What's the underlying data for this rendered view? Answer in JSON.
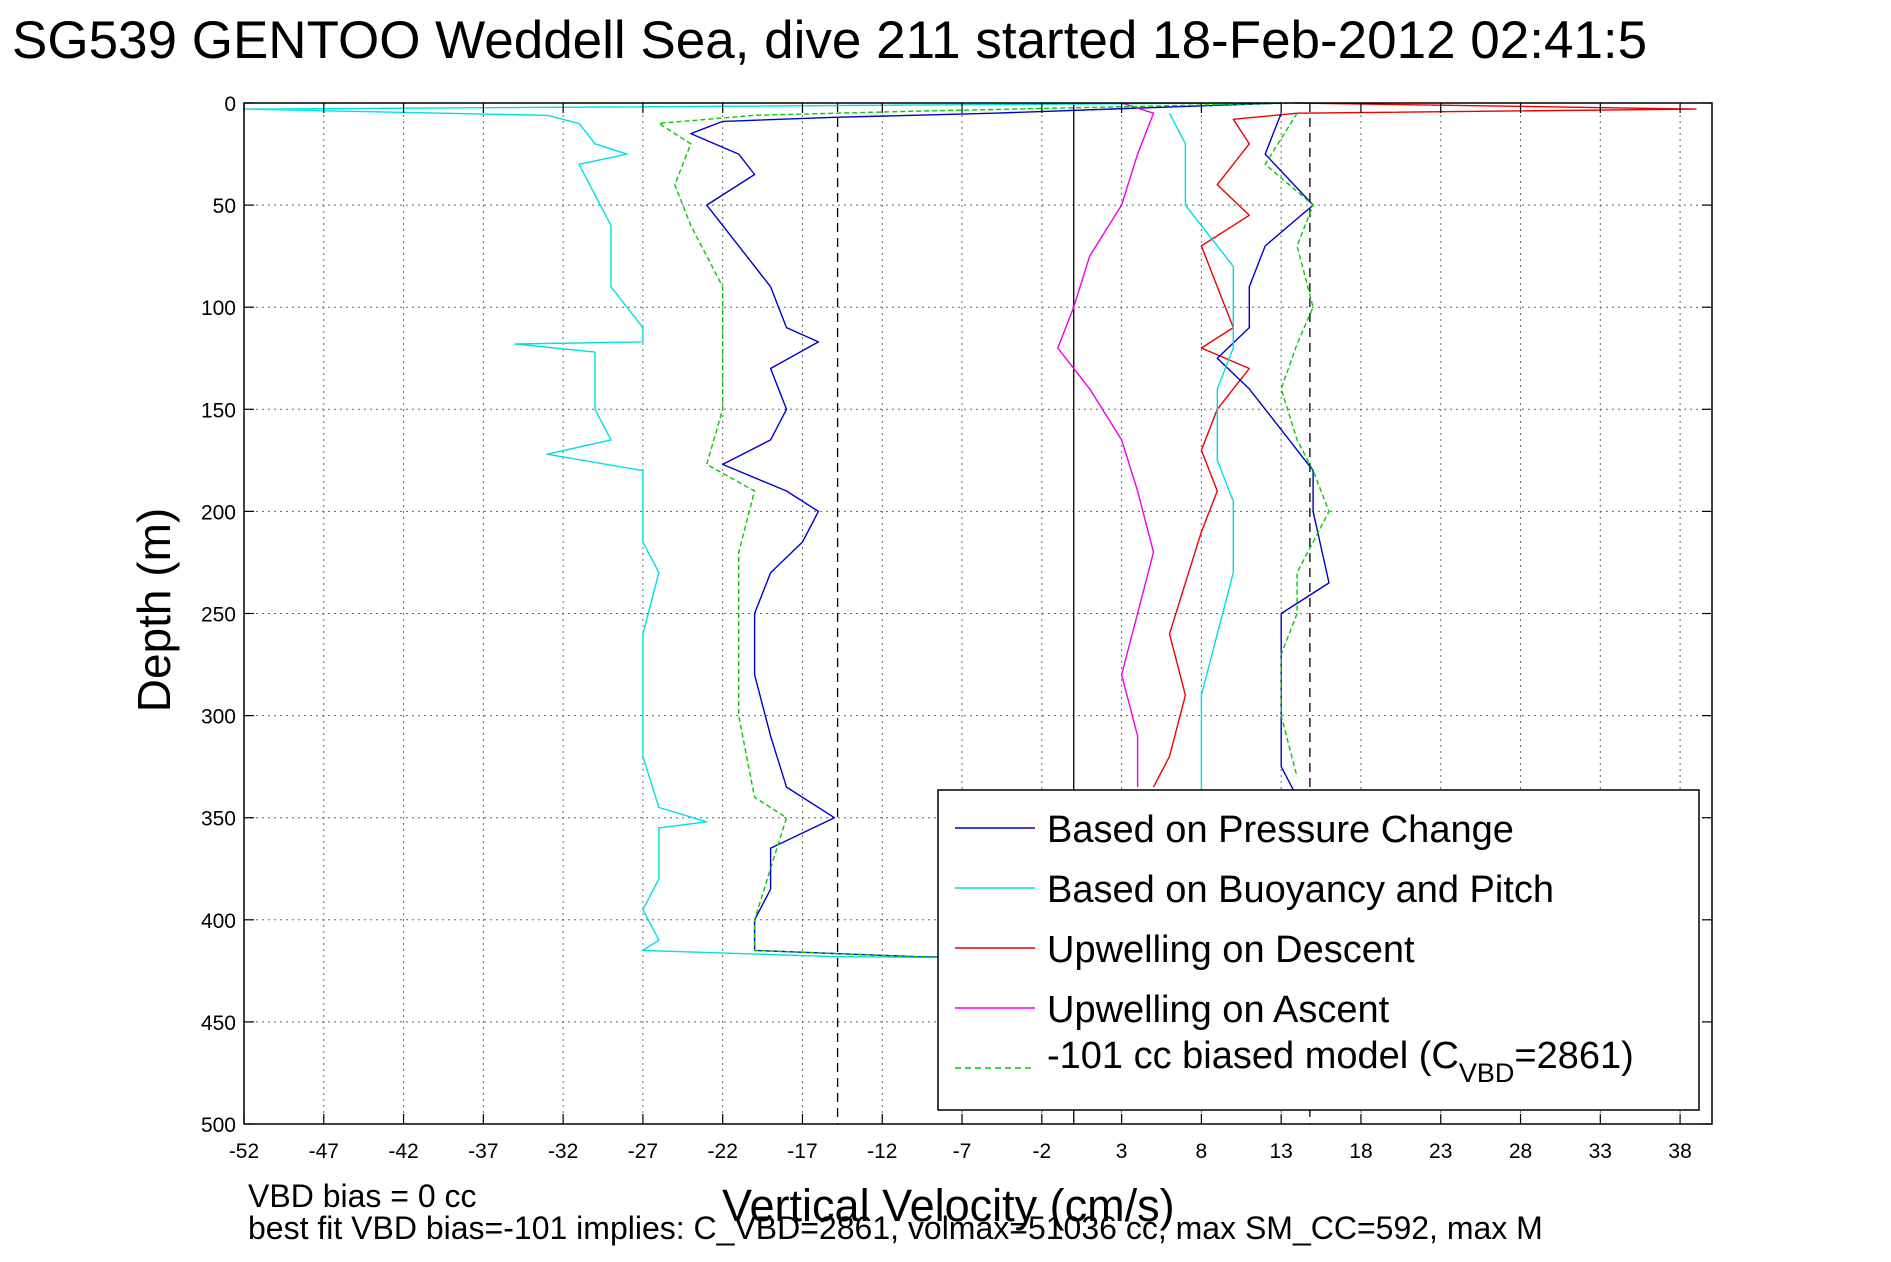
{
  "chart_data": {
    "type": "line",
    "title": "SG539 GENTOO Weddell Sea, dive 211 started 18-Feb-2012 02:41:5",
    "xlabel": "Vertical Velocity (cm/s)",
    "ylabel": "Depth (m)",
    "xlim": [
      -52,
      40
    ],
    "ylim": [
      0,
      500
    ],
    "y_reversed": true,
    "xticks": [
      -52,
      -47,
      -42,
      -37,
      -32,
      -27,
      -22,
      -17,
      -12,
      -7,
      -2,
      3,
      8,
      13,
      18,
      23,
      28,
      33,
      38
    ],
    "yticks": [
      0,
      50,
      100,
      150,
      200,
      250,
      300,
      350,
      400,
      450,
      500
    ],
    "grid": true,
    "legend_position": "bottom-right",
    "reference_lines": [
      {
        "x": -14.8,
        "style": "dashed",
        "color": "#000000"
      },
      {
        "x": 0.0,
        "style": "solid",
        "color": "#000000"
      },
      {
        "x": 14.8,
        "style": "dashed",
        "color": "#000000"
      }
    ],
    "series": [
      {
        "name": "Based on Pressure Change",
        "color": "#0000cc",
        "style": "solid",
        "points": [
          [
            13,
            0
          ],
          [
            -5,
            5
          ],
          [
            -15,
            7
          ],
          [
            -22,
            9
          ],
          [
            -24,
            15
          ],
          [
            -21,
            25
          ],
          [
            -20,
            35
          ],
          [
            -23,
            50
          ],
          [
            -21,
            70
          ],
          [
            -19,
            90
          ],
          [
            -18,
            110
          ],
          [
            -16,
            117
          ],
          [
            -19,
            130
          ],
          [
            -18,
            150
          ],
          [
            -19,
            165
          ],
          [
            -22,
            177
          ],
          [
            -18,
            190
          ],
          [
            -16,
            200
          ],
          [
            -17,
            215
          ],
          [
            -19,
            230
          ],
          [
            -20,
            250
          ],
          [
            -20,
            280
          ],
          [
            -19,
            310
          ],
          [
            -18,
            335
          ],
          [
            -15,
            350
          ],
          [
            -19,
            365
          ],
          [
            -19,
            385
          ],
          [
            -20,
            400
          ],
          [
            -20,
            415
          ],
          [
            -10,
            418
          ],
          [
            0,
            419
          ]
        ]
      },
      {
        "name": "Based on Buoyancy and Pitch",
        "color": "#00e0e0",
        "style": "solid",
        "points": [
          [
            10,
            0
          ],
          [
            -30,
            2
          ],
          [
            -52,
            3
          ],
          [
            -33,
            6
          ],
          [
            -31,
            10
          ],
          [
            -30,
            20
          ],
          [
            -28,
            25
          ],
          [
            -31,
            30
          ],
          [
            -30,
            45
          ],
          [
            -29,
            60
          ],
          [
            -29,
            90
          ],
          [
            -27,
            110
          ],
          [
            -27,
            117
          ],
          [
            -35,
            118
          ],
          [
            -30,
            122
          ],
          [
            -30,
            150
          ],
          [
            -29,
            165
          ],
          [
            -33,
            172
          ],
          [
            -27,
            180
          ],
          [
            -27,
            215
          ],
          [
            -26,
            230
          ],
          [
            -27,
            260
          ],
          [
            -27,
            290
          ],
          [
            -27,
            320
          ],
          [
            -26,
            345
          ],
          [
            -23,
            352
          ],
          [
            -26,
            355
          ],
          [
            -26,
            380
          ],
          [
            -27,
            395
          ],
          [
            -26,
            410
          ],
          [
            -27,
            415
          ],
          [
            -15,
            418
          ],
          [
            0,
            419
          ]
        ]
      },
      {
        "name": "Upwelling on Descent",
        "color": "#ee0000",
        "style": "solid",
        "points": [
          [
            14,
            0
          ],
          [
            39,
            3
          ],
          [
            14,
            5
          ],
          [
            10,
            8
          ],
          [
            11,
            20
          ],
          [
            9,
            40
          ],
          [
            11,
            55
          ],
          [
            8,
            70
          ],
          [
            9,
            90
          ],
          [
            10,
            110
          ],
          [
            8,
            120
          ],
          [
            11,
            130
          ],
          [
            9,
            150
          ],
          [
            8,
            170
          ],
          [
            9,
            190
          ],
          [
            8,
            210
          ],
          [
            7,
            235
          ],
          [
            6,
            260
          ],
          [
            7,
            290
          ],
          [
            6,
            320
          ],
          [
            5,
            335
          ]
        ]
      },
      {
        "name": "Upwelling on Ascent",
        "color": "#ee00ee",
        "style": "solid",
        "points": [
          [
            3,
            0
          ],
          [
            5,
            5
          ],
          [
            4,
            25
          ],
          [
            3,
            50
          ],
          [
            1,
            75
          ],
          [
            0,
            100
          ],
          [
            -1,
            120
          ],
          [
            1,
            140
          ],
          [
            3,
            165
          ],
          [
            4,
            190
          ],
          [
            5,
            220
          ],
          [
            4,
            250
          ],
          [
            3,
            280
          ],
          [
            4,
            310
          ],
          [
            4,
            335
          ]
        ]
      },
      {
        "name": "-101 cc biased model (C_VBD=2861)",
        "color": "#00cc00",
        "style": "dashed",
        "points": [
          [
            14,
            0
          ],
          [
            -10,
            4
          ],
          [
            -20,
            6
          ],
          [
            -26,
            10
          ],
          [
            -24,
            20
          ],
          [
            -25,
            40
          ],
          [
            -24,
            60
          ],
          [
            -22,
            90
          ],
          [
            -22,
            115
          ],
          [
            -22,
            150
          ],
          [
            -23,
            177
          ],
          [
            -20,
            190
          ],
          [
            -21,
            220
          ],
          [
            -21,
            250
          ],
          [
            -21,
            300
          ],
          [
            -20,
            340
          ],
          [
            -18,
            350
          ],
          [
            -20,
            400
          ],
          [
            -20,
            415
          ],
          [
            -10,
            418
          ],
          [
            -2,
            419
          ]
        ]
      },
      {
        "name": "",
        "color": "#0000cc",
        "style": "solid",
        "points": [
          [
            13,
            5
          ],
          [
            12,
            25
          ],
          [
            15,
            50
          ],
          [
            12,
            70
          ],
          [
            11,
            90
          ],
          [
            11,
            110
          ],
          [
            9,
            125
          ],
          [
            11,
            140
          ],
          [
            13,
            160
          ],
          [
            15,
            180
          ],
          [
            15,
            200
          ],
          [
            16,
            235
          ],
          [
            13,
            250
          ],
          [
            13,
            270
          ],
          [
            13,
            290
          ],
          [
            13,
            310
          ],
          [
            13,
            325
          ],
          [
            14,
            340
          ]
        ]
      },
      {
        "name": "",
        "color": "#00e0e0",
        "style": "solid",
        "points": [
          [
            6,
            5
          ],
          [
            7,
            20
          ],
          [
            7,
            50
          ],
          [
            10,
            80
          ],
          [
            10,
            120
          ],
          [
            9,
            140
          ],
          [
            9,
            175
          ],
          [
            10,
            195
          ],
          [
            10,
            230
          ],
          [
            9,
            260
          ],
          [
            8,
            290
          ],
          [
            8,
            320
          ],
          [
            8,
            340
          ]
        ]
      },
      {
        "name": "",
        "color": "#00cc00",
        "style": "dashed",
        "points": [
          [
            14,
            5
          ],
          [
            12,
            30
          ],
          [
            15,
            50
          ],
          [
            14,
            70
          ],
          [
            15,
            100
          ],
          [
            14,
            118
          ],
          [
            13,
            140
          ],
          [
            14,
            165
          ],
          [
            15,
            180
          ],
          [
            16,
            200
          ],
          [
            14,
            230
          ],
          [
            14,
            250
          ],
          [
            13,
            270
          ],
          [
            13,
            300
          ],
          [
            14,
            330
          ]
        ]
      }
    ],
    "legend": {
      "entries": [
        "Based on Pressure Change",
        "Based on Buoyancy and Pitch",
        "Upwelling on Descent",
        "Upwelling on Ascent",
        "-101 cc biased model (C",
        "=2861)"
      ],
      "subscript": "VBD"
    }
  },
  "footer": {
    "xlabel": "Vertical Velocity (cm/s)",
    "line1": "VBD bias = 0 cc",
    "line2": "best fit VBD bias=-101 implies: C_VBD=2861, volmax=51036 cc, max SM_CC=592, max M"
  }
}
